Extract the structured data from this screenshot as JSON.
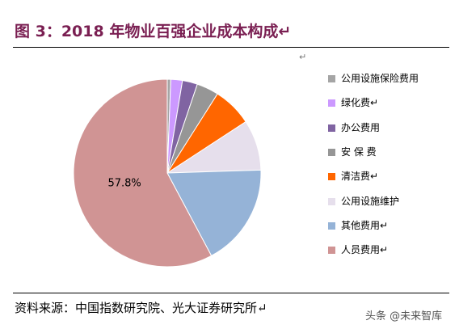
{
  "header": {
    "title": "图 3：2018 年物业百强企业成本构成↵"
  },
  "chart_data": {
    "type": "pie",
    "title": "",
    "start_angle_deg": 90,
    "direction": "clockwise",
    "legend_position": "right",
    "slices": [
      {
        "name": "公用设施保险费用",
        "value": 0.6,
        "color": "#a5a5a5"
      },
      {
        "name": "绿化费↵",
        "value": 2.0,
        "color": "#cc99ff"
      },
      {
        "name": "办公费用",
        "value": 2.6,
        "color": "#8064a2"
      },
      {
        "name": "安 保 费",
        "value": 3.8,
        "color": "#969696"
      },
      {
        "name": "清洁费↵",
        "value": 6.8,
        "color": "#ff6600"
      },
      {
        "name": "公用设施维护",
        "value": 8.7,
        "color": "#e6dfec"
      },
      {
        "name": "其他费用↵",
        "value": 17.7,
        "color": "#95b3d7"
      },
      {
        "name": "人员费用↵",
        "value": 57.8,
        "color": "#d09494"
      }
    ],
    "data_labels": [
      {
        "slice": "人员费用↵",
        "text": "57.8%"
      }
    ]
  },
  "source": {
    "text": "资料来源：中国指数研究院、光大证券研究所↵"
  },
  "misc": {
    "mark": "↵"
  },
  "watermark": {
    "text": "头条 @未来智库"
  }
}
